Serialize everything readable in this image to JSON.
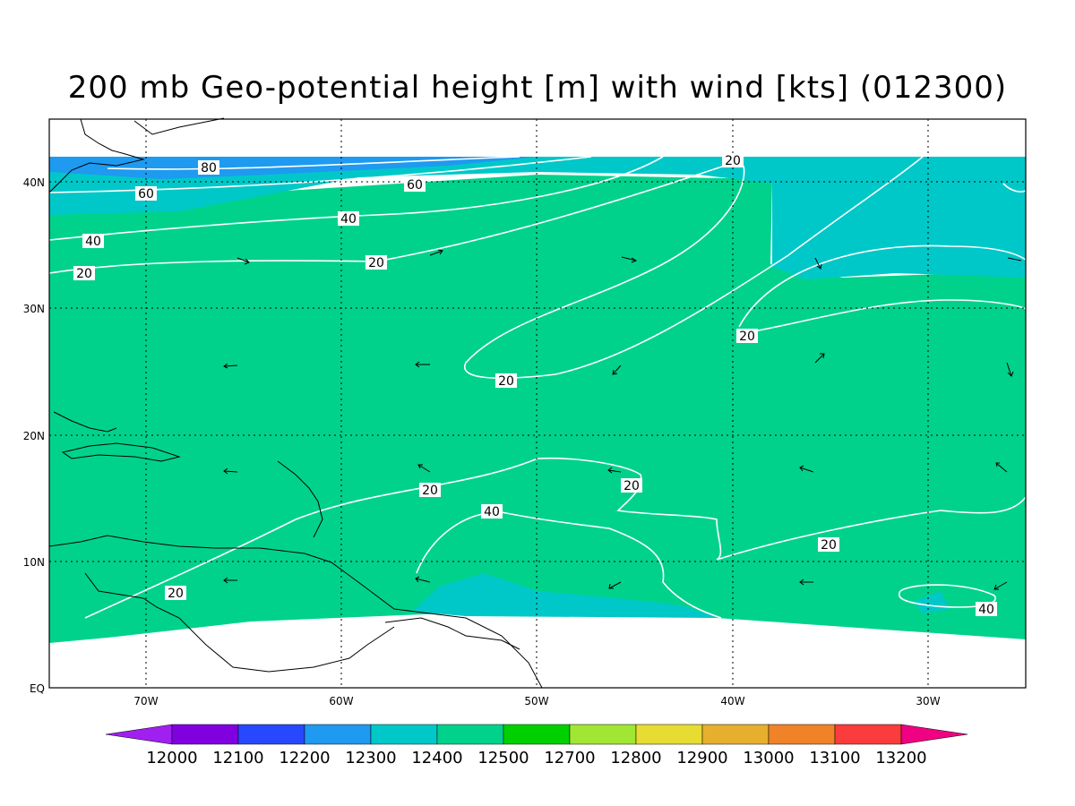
{
  "title": "200 mb Geo-potential height [m] with wind [kts] (012300)",
  "axes": {
    "lon_ticks": [
      "70W",
      "60W",
      "50W",
      "40W",
      "30W"
    ],
    "lat_ticks": [
      "40N",
      "30N",
      "20N",
      "10N",
      "EQ"
    ]
  },
  "contour_labels": {
    "l80": "80",
    "l60a": "60",
    "l60b": "60",
    "l40a": "40",
    "l40b": "40",
    "l40c": "40",
    "l40d": "40",
    "l20a": "20",
    "l20b": "20",
    "l20c": "20",
    "l20d": "20",
    "l20e": "20",
    "l20f": "20",
    "l20g": "20",
    "l20h": "20",
    "l20i": "20"
  },
  "colorbar": {
    "labels": [
      "12000",
      "12100",
      "12200",
      "12300",
      "12400",
      "12500",
      "12700",
      "12800",
      "12900",
      "13000",
      "13100",
      "13200"
    ],
    "colors": [
      "#a020f0",
      "#8000e0",
      "#2848ff",
      "#1e9af0",
      "#00c8c8",
      "#00d28c",
      "#00d000",
      "#a0e632",
      "#e6dc32",
      "#e6af2d",
      "#f08228",
      "#fa3c3c",
      "#f00082"
    ]
  },
  "fill_colors": {
    "band_12300": "#1e9af0",
    "band_12400": "#00c8c8",
    "band_12500": "#00d28c",
    "contour": "#ffffff",
    "land": "#000000"
  }
}
